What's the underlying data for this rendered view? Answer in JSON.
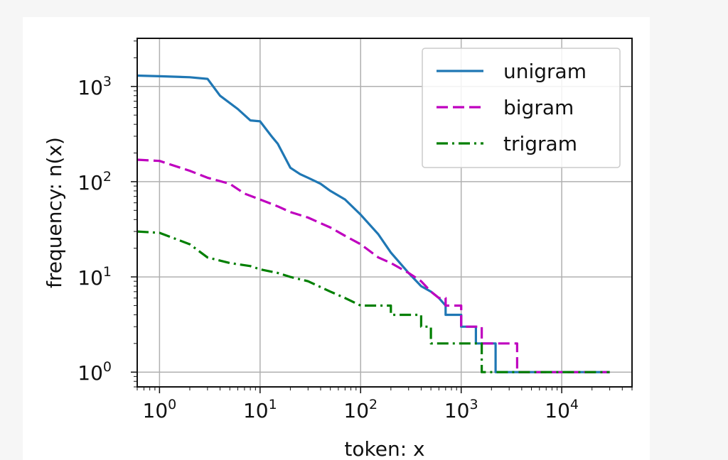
{
  "chart_data": {
    "type": "line",
    "xlabel": "token: x",
    "ylabel": "frequency: n(x)",
    "xscale": "log",
    "yscale": "log",
    "xlim": [
      0.6,
      50000
    ],
    "ylim": [
      0.7,
      3200
    ],
    "grid": true,
    "legend_position": "top-right",
    "x_ticks": [
      {
        "value": 1,
        "base": "10",
        "exp": "0"
      },
      {
        "value": 10,
        "base": "10",
        "exp": "1"
      },
      {
        "value": 100,
        "base": "10",
        "exp": "2"
      },
      {
        "value": 1000,
        "base": "10",
        "exp": "3"
      },
      {
        "value": 10000,
        "base": "10",
        "exp": "4"
      }
    ],
    "y_ticks": [
      {
        "value": 1,
        "base": "10",
        "exp": "0"
      },
      {
        "value": 10,
        "base": "10",
        "exp": "1"
      },
      {
        "value": 100,
        "base": "10",
        "exp": "2"
      },
      {
        "value": 1000,
        "base": "10",
        "exp": "3"
      }
    ],
    "series": [
      {
        "name": "unigram",
        "color": "#1f77b4",
        "dash": "solid",
        "x": [
          0.6,
          1,
          2,
          3,
          4,
          6,
          8,
          10,
          13,
          15,
          20,
          25,
          30,
          40,
          50,
          70,
          100,
          150,
          200,
          300,
          400,
          500,
          600,
          700,
          700,
          1000,
          1000,
          1400,
          1400,
          2200,
          2200,
          30000
        ],
        "y": [
          1300,
          1280,
          1250,
          1200,
          800,
          580,
          440,
          430,
          300,
          250,
          140,
          120,
          110,
          95,
          80,
          65,
          45,
          28,
          18,
          11,
          8,
          7,
          6,
          5,
          4,
          4,
          3,
          3,
          2,
          2,
          1,
          1
        ]
      },
      {
        "name": "bigram",
        "color": "#bf00bf",
        "dash": "dashed",
        "x": [
          0.6,
          1,
          2,
          3,
          5,
          7,
          10,
          15,
          20,
          30,
          50,
          70,
          100,
          150,
          200,
          300,
          400,
          500,
          600,
          700,
          700,
          1000,
          1000,
          1600,
          1600,
          3600,
          3600,
          30000
        ],
        "y": [
          170,
          165,
          130,
          110,
          95,
          75,
          65,
          55,
          48,
          42,
          33,
          27,
          22,
          16,
          14,
          11,
          9,
          7,
          6,
          6,
          5,
          5,
          3,
          3,
          2,
          2,
          1,
          1
        ]
      },
      {
        "name": "trigram",
        "color": "#007f00",
        "dash": "dashdot",
        "x": [
          0.6,
          1,
          2,
          3,
          5,
          8,
          10,
          15,
          20,
          30,
          50,
          70,
          100,
          150,
          200,
          200,
          400,
          400,
          500,
          500,
          1600,
          1600,
          30000
        ],
        "y": [
          30,
          29,
          22,
          16,
          14,
          13,
          12,
          11,
          10,
          9,
          7,
          6,
          5,
          5,
          5,
          4,
          4,
          3,
          3,
          2,
          2,
          1,
          1
        ]
      }
    ]
  }
}
